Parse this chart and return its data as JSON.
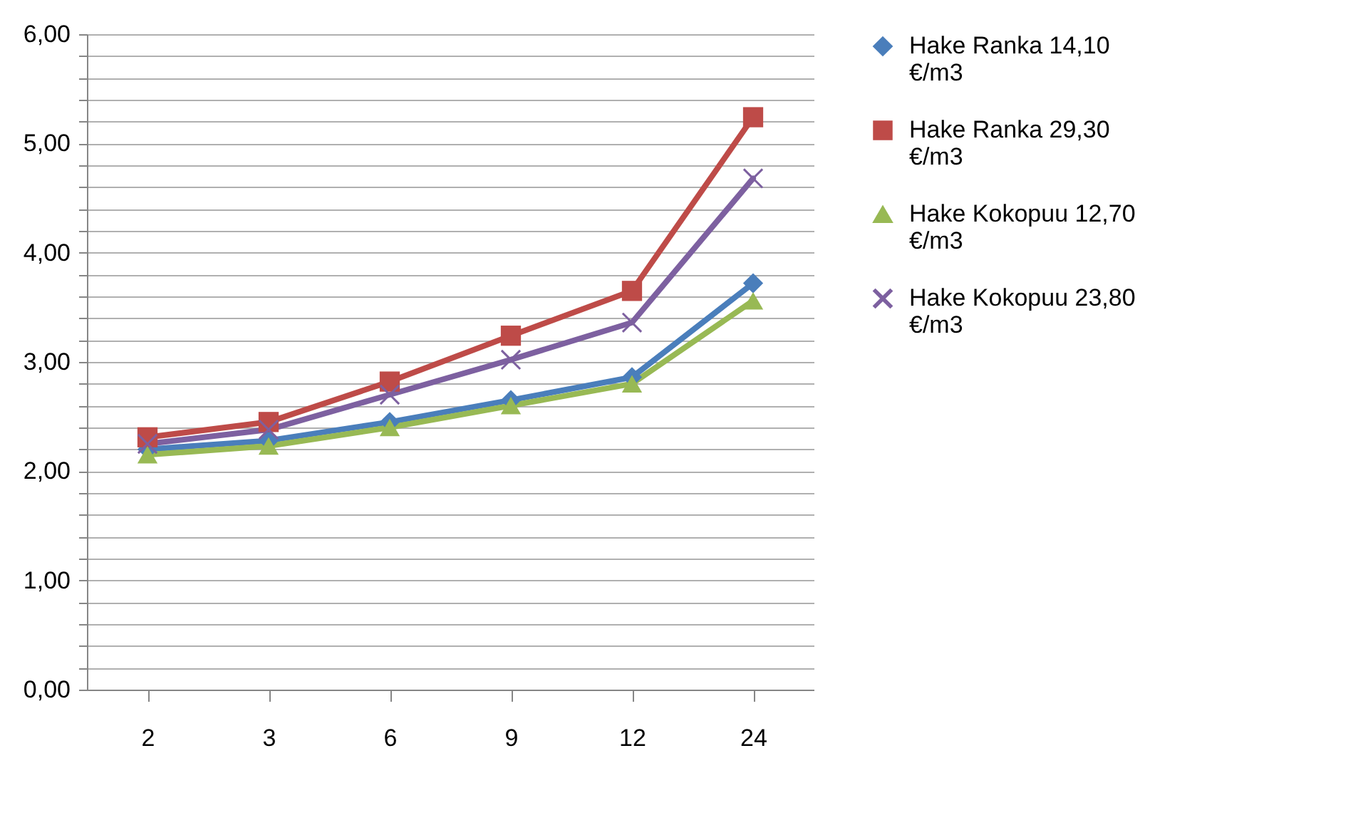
{
  "chart_data": {
    "type": "line",
    "categories": [
      "2",
      "3",
      "6",
      "9",
      "12",
      "24"
    ],
    "series": [
      {
        "name": "Hake Ranka 14,10 €/m3",
        "color": "#4a7ebb",
        "marker": "diamond",
        "values": [
          2.2,
          2.28,
          2.45,
          2.65,
          2.86,
          3.72
        ]
      },
      {
        "name": "Hake Ranka 29,30 €/m3",
        "color": "#be4b48",
        "marker": "square",
        "values": [
          2.31,
          2.45,
          2.82,
          3.24,
          3.65,
          5.24
        ]
      },
      {
        "name": "Hake Kokopuu 12,70 €/m3",
        "color": "#98b954",
        "marker": "triangle",
        "values": [
          2.15,
          2.23,
          2.4,
          2.6,
          2.8,
          3.56
        ]
      },
      {
        "name": "Hake Kokopuu 23,80 €/m3",
        "color": "#7d60a0",
        "marker": "cross",
        "values": [
          2.25,
          2.38,
          2.7,
          3.02,
          3.36,
          4.68
        ]
      }
    ],
    "ylim": [
      0,
      6
    ],
    "yticks": [
      {
        "value": 0,
        "label": "0,00"
      },
      {
        "value": 0.2,
        "label": null
      },
      {
        "value": 0.4,
        "label": null
      },
      {
        "value": 0.6,
        "label": null
      },
      {
        "value": 0.8,
        "label": null
      },
      {
        "value": 1,
        "label": "1,00"
      },
      {
        "value": 1.2,
        "label": null
      },
      {
        "value": 1.4,
        "label": null
      },
      {
        "value": 1.6,
        "label": null
      },
      {
        "value": 1.8,
        "label": null
      },
      {
        "value": 2,
        "label": "2,00"
      },
      {
        "value": 2.2,
        "label": null
      },
      {
        "value": 2.4,
        "label": null
      },
      {
        "value": 2.6,
        "label": null
      },
      {
        "value": 2.8,
        "label": null
      },
      {
        "value": 3,
        "label": "3,00"
      },
      {
        "value": 3.2,
        "label": null
      },
      {
        "value": 3.4,
        "label": null
      },
      {
        "value": 3.6,
        "label": null
      },
      {
        "value": 3.8,
        "label": null
      },
      {
        "value": 4,
        "label": "4,00"
      },
      {
        "value": 4.2,
        "label": null
      },
      {
        "value": 4.4,
        "label": null
      },
      {
        "value": 4.6,
        "label": null
      },
      {
        "value": 4.8,
        "label": null
      },
      {
        "value": 5,
        "label": "5,00"
      },
      {
        "value": 5.2,
        "label": null
      },
      {
        "value": 5.4,
        "label": null
      },
      {
        "value": 5.6,
        "label": null
      },
      {
        "value": 5.8,
        "label": null
      },
      {
        "value": 6,
        "label": "6,00"
      }
    ],
    "grid": "y",
    "legend": "right"
  }
}
